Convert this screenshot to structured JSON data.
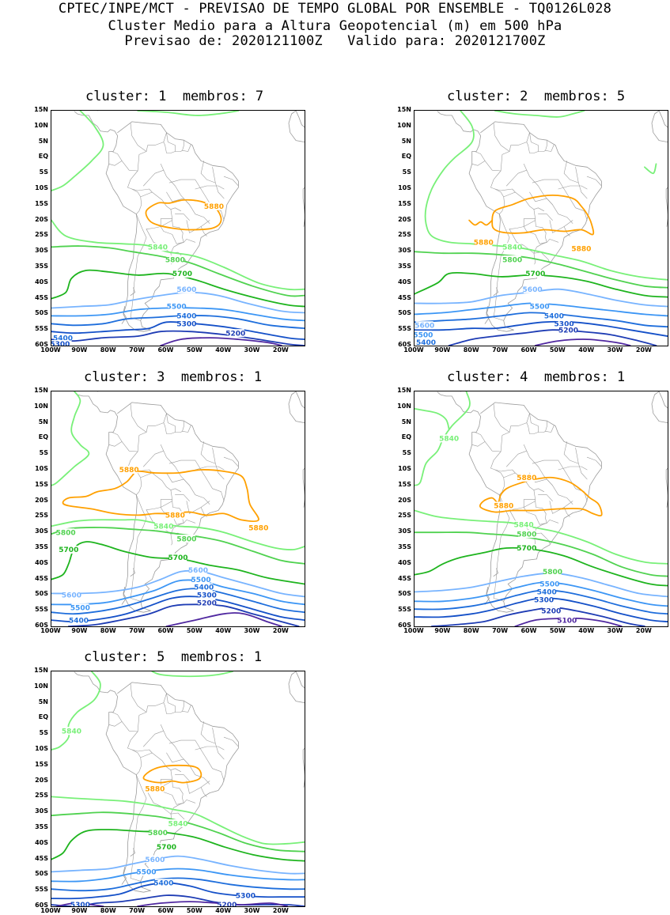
{
  "header": {
    "line1": "CPTEC/INPE/MCT - PREVISAO DE TEMPO GLOBAL POR ENSEMBLE - TQ0126L028",
    "line2": "Cluster Medio para a Altura Geopotencial (m) em 500 hPa",
    "line3": "Previsao de: 2020121100Z   Valido para: 2020121700Z"
  },
  "axes": {
    "lat_labels": [
      "15N",
      "10N",
      "5N",
      "EQ",
      "5S",
      "10S",
      "15S",
      "20S",
      "25S",
      "30S",
      "35S",
      "40S",
      "45S",
      "50S",
      "55S",
      "60S"
    ],
    "lon_labels": [
      "100W",
      "90W",
      "80W",
      "70W",
      "60W",
      "50W",
      "40W",
      "30W",
      "20W"
    ]
  },
  "colors": {
    "c5880": "#ffa000",
    "c5840": "#78f078",
    "c5800": "#50d250",
    "c5700": "#1eb41e",
    "c5600": "#78b4ff",
    "c5500": "#3c96f5",
    "c5400": "#1e6edc",
    "c5300": "#1450c8",
    "c5200": "#1e3cb4",
    "c5100": "#5028a0",
    "coast": "#9b9b9b"
  },
  "panels": [
    {
      "title": "cluster: 1  membros: 7",
      "labels": [
        {
          "t": "5880",
          "c": "c5880",
          "x": 43.5,
          "y": -15.5
        },
        {
          "t": "5840",
          "c": "c5840",
          "x": 63,
          "y": -28.5
        },
        {
          "t": "5800",
          "c": "c5800",
          "x": 57,
          "y": -32.5
        },
        {
          "t": "5700",
          "c": "c5700",
          "x": 54.5,
          "y": -37
        },
        {
          "t": "5600",
          "c": "c5600",
          "x": 53,
          "y": -42
        },
        {
          "t": "5500",
          "c": "c5500",
          "x": 56.5,
          "y": -47.5
        },
        {
          "t": "5400",
          "c": "c5400",
          "x": 53,
          "y": -50.5
        },
        {
          "t": "5300",
          "c": "c5300",
          "x": 53,
          "y": -53
        },
        {
          "t": "5200",
          "c": "c5200",
          "x": 36,
          "y": -56
        },
        {
          "t": "5400",
          "c": "c5400",
          "x": 96,
          "y": -57.5
        },
        {
          "t": "5300",
          "c": "c5300",
          "x": 97,
          "y": -59.5
        },
        {
          "t": "5200",
          "c": "c5200",
          "x": 94,
          "y": -62
        }
      ]
    },
    {
      "title": "cluster: 2  membros: 5",
      "labels": [
        {
          "t": "5880",
          "c": "c5880",
          "x": 76,
          "y": -27
        },
        {
          "t": "5880",
          "c": "c5880",
          "x": 42,
          "y": -29
        },
        {
          "t": "5840",
          "c": "c5840",
          "x": 66,
          "y": -28.5
        },
        {
          "t": "5800",
          "c": "c5800",
          "x": 66,
          "y": -32.5
        },
        {
          "t": "5700",
          "c": "c5700",
          "x": 58,
          "y": -37
        },
        {
          "t": "5600",
          "c": "c5600",
          "x": 59,
          "y": -42
        },
        {
          "t": "5500",
          "c": "c5500",
          "x": 56.5,
          "y": -47.5
        },
        {
          "t": "5400",
          "c": "c5400",
          "x": 51.5,
          "y": -50.5
        },
        {
          "t": "5300",
          "c": "c5300",
          "x": 48,
          "y": -53
        },
        {
          "t": "5200",
          "c": "c5200",
          "x": 46.5,
          "y": -55
        },
        {
          "t": "5600",
          "c": "c5600",
          "x": 96.5,
          "y": -53.5
        },
        {
          "t": "5500",
          "c": "c5500",
          "x": 97,
          "y": -56.5
        },
        {
          "t": "5400",
          "c": "c5400",
          "x": 96,
          "y": -59
        },
        {
          "t": "5300",
          "c": "c5300",
          "x": 85,
          "y": -62
        },
        {
          "t": "5200",
          "c": "c5200",
          "x": 84,
          "y": -64
        }
      ]
    },
    {
      "title": "cluster: 3  membros: 1",
      "labels": [
        {
          "t": "5880",
          "c": "c5880",
          "x": 73,
          "y": -10
        },
        {
          "t": "5880",
          "c": "c5880",
          "x": 57,
          "y": -24.5
        },
        {
          "t": "5880",
          "c": "c5880",
          "x": 28,
          "y": -28.5
        },
        {
          "t": "5840",
          "c": "c5840",
          "x": 61,
          "y": -28
        },
        {
          "t": "5800",
          "c": "c5800",
          "x": 95,
          "y": -30
        },
        {
          "t": "5800",
          "c": "c5800",
          "x": 53,
          "y": -32
        },
        {
          "t": "5700",
          "c": "c5700",
          "x": 94,
          "y": -35.5
        },
        {
          "t": "5700",
          "c": "c5700",
          "x": 56,
          "y": -38
        },
        {
          "t": "5600",
          "c": "c5600",
          "x": 49,
          "y": -42
        },
        {
          "t": "5500",
          "c": "c5500",
          "x": 48,
          "y": -45
        },
        {
          "t": "5400",
          "c": "c5400",
          "x": 47,
          "y": -47.5
        },
        {
          "t": "5300",
          "c": "c5300",
          "x": 46,
          "y": -50
        },
        {
          "t": "5200",
          "c": "c5200",
          "x": 46,
          "y": -52.5
        },
        {
          "t": "5600",
          "c": "c5600",
          "x": 93,
          "y": -50
        },
        {
          "t": "5500",
          "c": "c5500",
          "x": 90,
          "y": -54
        },
        {
          "t": "5400",
          "c": "c5400",
          "x": 90.5,
          "y": -58
        },
        {
          "t": "5300",
          "c": "c5300",
          "x": 91,
          "y": -62
        }
      ]
    },
    {
      "title": "cluster: 4  membros: 1",
      "labels": [
        {
          "t": "5840",
          "c": "c5840",
          "x": 88,
          "y": 0
        },
        {
          "t": "5880",
          "c": "c5880",
          "x": 61,
          "y": -12.5
        },
        {
          "t": "5880",
          "c": "c5880",
          "x": 69,
          "y": -21.5
        },
        {
          "t": "5840",
          "c": "c5840",
          "x": 62,
          "y": -27.5
        },
        {
          "t": "5800",
          "c": "c5800",
          "x": 61,
          "y": -30.5
        },
        {
          "t": "5700",
          "c": "c5700",
          "x": 61,
          "y": -35
        },
        {
          "t": "5800",
          "c": "c5800",
          "x": 52,
          "y": -42.5
        },
        {
          "t": "5500",
          "c": "c5500",
          "x": 53,
          "y": -46.5
        },
        {
          "t": "5400",
          "c": "c5400",
          "x": 54,
          "y": -49
        },
        {
          "t": "5300",
          "c": "c5300",
          "x": 55,
          "y": -51.5
        },
        {
          "t": "5200",
          "c": "c5200",
          "x": 52.5,
          "y": -55
        },
        {
          "t": "5100",
          "c": "c5100",
          "x": 47,
          "y": -58
        }
      ]
    },
    {
      "title": "cluster: 5  membros: 1",
      "labels": [
        {
          "t": "5840",
          "c": "c5840",
          "x": 93,
          "y": -4
        },
        {
          "t": "5880",
          "c": "c5880",
          "x": 64,
          "y": -22.5
        },
        {
          "t": "5840",
          "c": "c5840",
          "x": 56,
          "y": -33.5
        },
        {
          "t": "5800",
          "c": "c5800",
          "x": 63,
          "y": -36.5
        },
        {
          "t": "5700",
          "c": "c5700",
          "x": 60,
          "y": -41
        },
        {
          "t": "5600",
          "c": "c5600",
          "x": 64,
          "y": -45
        },
        {
          "t": "5500",
          "c": "c5500",
          "x": 67,
          "y": -49
        },
        {
          "t": "5400",
          "c": "c5400",
          "x": 61,
          "y": -52.5
        },
        {
          "t": "5300",
          "c": "c5300",
          "x": 32.5,
          "y": -56.5
        },
        {
          "t": "5200",
          "c": "c5200",
          "x": 39,
          "y": -59.5
        },
        {
          "t": "5300",
          "c": "c5300",
          "x": 90,
          "y": -59.5
        },
        {
          "t": "5200",
          "c": "c5200",
          "x": 97,
          "y": -61.5
        }
      ]
    }
  ]
}
